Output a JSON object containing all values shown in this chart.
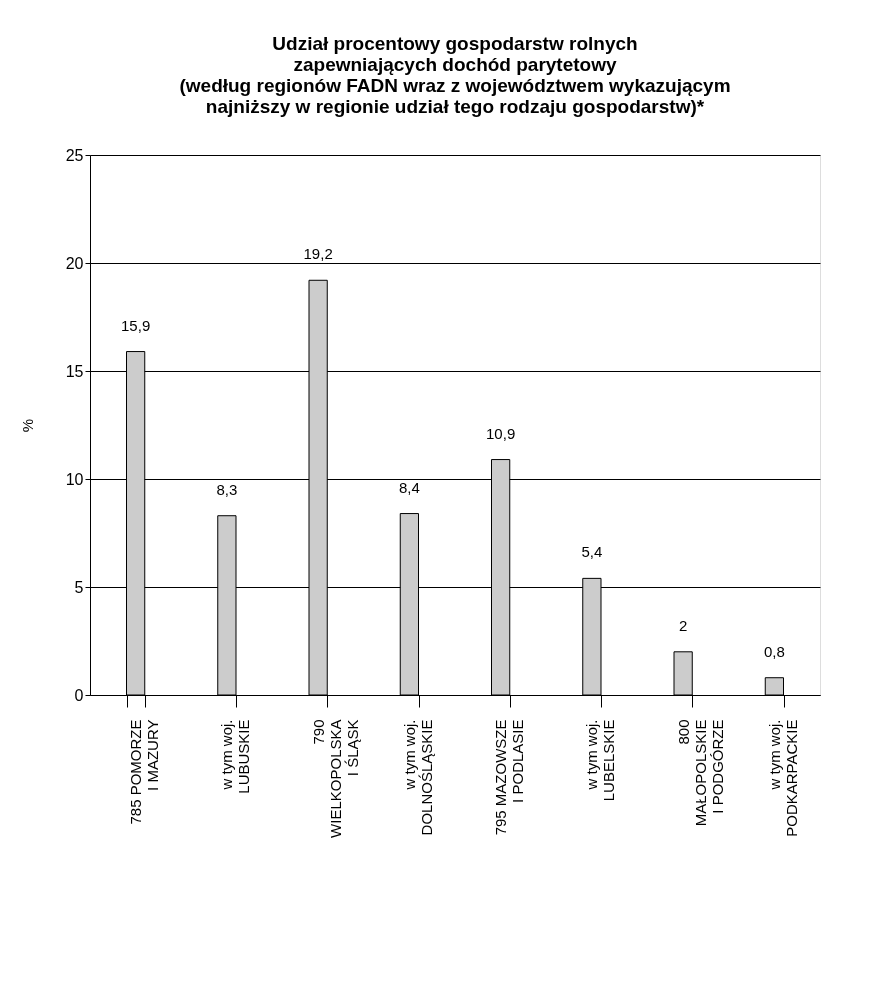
{
  "chart_data": {
    "type": "bar",
    "title": [
      "Udział procentowy gospodarstw rolnych",
      "zapewniających dochód parytetowy",
      "(według regionów FADN wraz z województwem wykazującym",
      "najniższy w regionie udział tego rodzaju gospodarstw)*"
    ],
    "ylabel": "%",
    "categories": [
      "785 POMORZE\nI MAZURY",
      "w tym woj.\nLUBUSKIE",
      "790\nWIELKOPOLSKA\nI ŚLĄSK",
      "w tym woj.\nDOLNOŚLĄSKIE",
      "795 MAZOWSZE\nI PODLASIE",
      "w tym woj.\nLUBELSKIE",
      "800\nMAŁOPOLSKIE\nI PODGÓRZE",
      "w tym woj.\nPODKARPACKIE"
    ],
    "values": [
      15.9,
      8.3,
      19.2,
      8.4,
      10.9,
      5.4,
      2,
      0.8
    ],
    "value_labels": [
      "15,9",
      "8,3",
      "19,2",
      "8,4",
      "10,9",
      "5,4",
      "2",
      "0,8"
    ],
    "color": "#cccccc",
    "ylim": [
      0,
      25
    ],
    "yticks": [
      0,
      5,
      10,
      15,
      20,
      25
    ],
    "grid": "y"
  }
}
